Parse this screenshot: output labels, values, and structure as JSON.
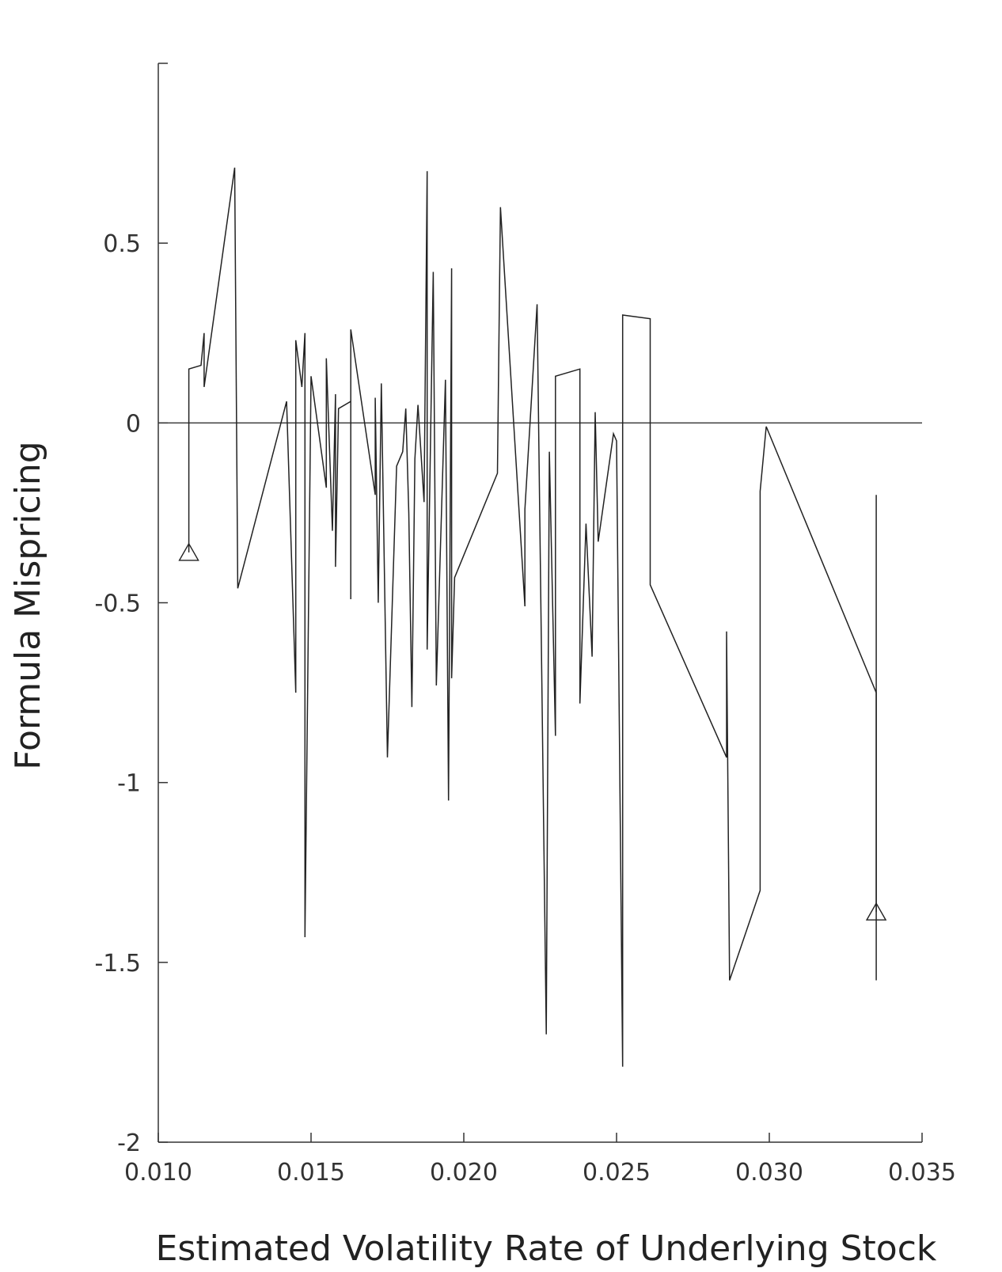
{
  "chart_data": {
    "type": "line",
    "title": "",
    "xlabel": "Estimated Volatility Rate of Underlying Stock",
    "ylabel": "Formula Mispricing",
    "xlim": [
      0.01,
      0.035
    ],
    "ylim": [
      -2,
      1
    ],
    "x_ticks": [
      0.01,
      0.015,
      0.02,
      0.025,
      0.03,
      0.035
    ],
    "x_tick_labels": [
      "0.010",
      "0.015",
      "0.020",
      "0.025",
      "0.030",
      "0.035"
    ],
    "y_ticks": [
      0.5,
      0,
      -0.5,
      -1,
      -1.5,
      -2
    ],
    "y_tick_labels": [
      "0.5",
      "0",
      "-0.5",
      "-1",
      "-1.5",
      "-2"
    ],
    "grid": false,
    "reference_line_y": 0,
    "series": [
      {
        "marker_endpoints": "triangle",
        "points": [
          [
            0.011,
            -0.36
          ],
          [
            0.011,
            0.15
          ],
          [
            0.0114,
            0.16
          ],
          [
            0.0115,
            0.25
          ],
          [
            0.0115,
            0.1
          ],
          [
            0.0125,
            0.71
          ],
          [
            0.0126,
            -0.46
          ],
          [
            0.0142,
            0.06
          ],
          [
            0.0145,
            -0.75
          ],
          [
            0.0145,
            0.23
          ],
          [
            0.0147,
            0.1
          ],
          [
            0.0148,
            0.25
          ],
          [
            0.0148,
            -1.43
          ],
          [
            0.015,
            0.13
          ],
          [
            0.0155,
            -0.18
          ],
          [
            0.0155,
            0.18
          ],
          [
            0.0157,
            -0.3
          ],
          [
            0.0158,
            0.08
          ],
          [
            0.0158,
            -0.4
          ],
          [
            0.0159,
            0.04
          ],
          [
            0.0163,
            0.06
          ],
          [
            0.0163,
            -0.49
          ],
          [
            0.0163,
            0.26
          ],
          [
            0.0171,
            -0.2
          ],
          [
            0.0171,
            0.07
          ],
          [
            0.0172,
            -0.5
          ],
          [
            0.0173,
            0.11
          ],
          [
            0.0175,
            -0.93
          ],
          [
            0.0178,
            -0.12
          ],
          [
            0.018,
            -0.08
          ],
          [
            0.0181,
            0.04
          ],
          [
            0.0182,
            -0.25
          ],
          [
            0.0183,
            -0.79
          ],
          [
            0.0184,
            -0.1
          ],
          [
            0.0185,
            0.05
          ],
          [
            0.0187,
            -0.22
          ],
          [
            0.0188,
            0.7
          ],
          [
            0.0188,
            -0.63
          ],
          [
            0.019,
            0.42
          ],
          [
            0.0191,
            -0.73
          ],
          [
            0.0194,
            0.12
          ],
          [
            0.0195,
            -1.05
          ],
          [
            0.0196,
            0.43
          ],
          [
            0.0196,
            -0.71
          ],
          [
            0.0197,
            -0.43
          ],
          [
            0.0211,
            -0.14
          ],
          [
            0.0212,
            0.6
          ],
          [
            0.022,
            -0.51
          ],
          [
            0.022,
            -0.24
          ],
          [
            0.0224,
            0.33
          ],
          [
            0.0227,
            -1.7
          ],
          [
            0.0228,
            -0.08
          ],
          [
            0.023,
            -0.87
          ],
          [
            0.023,
            0.13
          ],
          [
            0.0238,
            0.15
          ],
          [
            0.0238,
            -0.78
          ],
          [
            0.024,
            -0.28
          ],
          [
            0.0242,
            -0.65
          ],
          [
            0.0243,
            0.03
          ],
          [
            0.0244,
            -0.33
          ],
          [
            0.0249,
            -0.03
          ],
          [
            0.025,
            -0.05
          ],
          [
            0.0252,
            -1.79
          ],
          [
            0.0252,
            0.3
          ],
          [
            0.0261,
            0.29
          ],
          [
            0.0261,
            -0.45
          ],
          [
            0.0286,
            -0.93
          ],
          [
            0.0286,
            -0.58
          ],
          [
            0.0287,
            -1.55
          ],
          [
            0.0297,
            -1.3
          ],
          [
            0.0297,
            -0.19
          ],
          [
            0.0299,
            -0.01
          ],
          [
            0.0335,
            -0.75
          ],
          [
            0.0335,
            -1.36
          ]
        ],
        "whisker_at_end": {
          "x": 0.0335,
          "y_low": -1.55,
          "y_high": -0.2
        }
      }
    ]
  }
}
